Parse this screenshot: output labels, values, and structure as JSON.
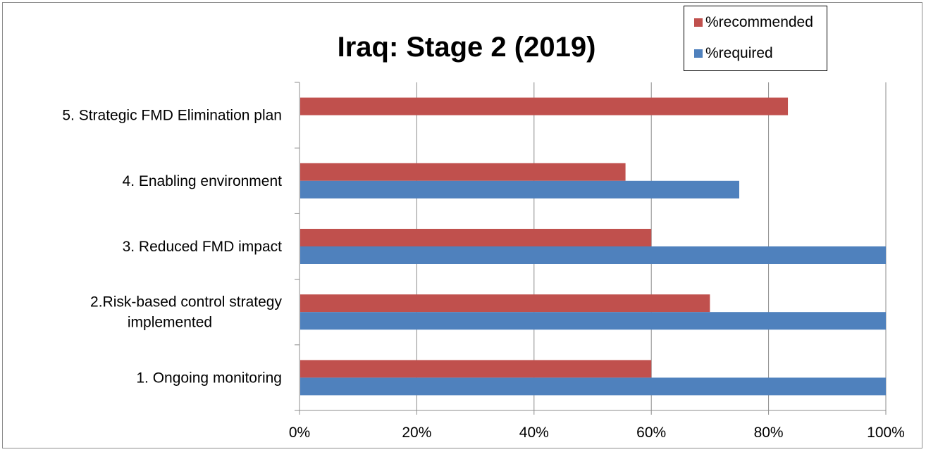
{
  "chart_data": {
    "type": "bar",
    "orientation": "horizontal",
    "title": "Iraq: Stage 2 (2019)",
    "categories": [
      [
        "5. Strategic FMD Elimination plan"
      ],
      [
        "4. Enabling environment"
      ],
      [
        "3. Reduced FMD impact"
      ],
      [
        "2.Risk-based control strategy",
        "implemented"
      ],
      [
        "1. Ongoing monitoring"
      ]
    ],
    "series": [
      {
        "name": "%recommended",
        "color": "#c0504d",
        "values": [
          83.3,
          55.6,
          60,
          70,
          60
        ]
      },
      {
        "name": "%required",
        "color": "#4f81bd",
        "values": [
          0,
          75,
          100,
          100,
          100
        ]
      }
    ],
    "x_ticks": [
      "0%",
      "20%",
      "40%",
      "60%",
      "80%",
      "100%"
    ],
    "xlim": [
      0,
      100
    ],
    "grid": true,
    "legend_position": "top-right"
  }
}
